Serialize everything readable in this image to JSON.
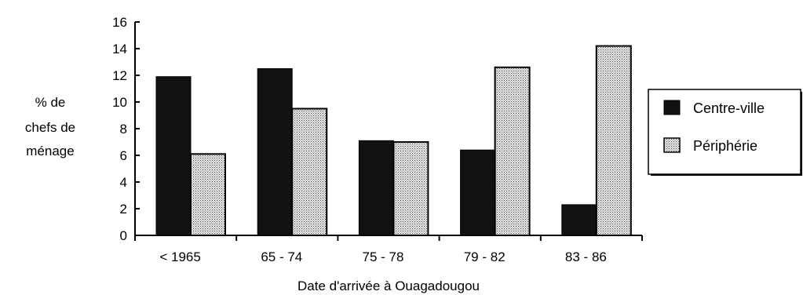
{
  "chart_data": {
    "type": "bar",
    "categories": [
      "< 1965",
      "65 - 74",
      "75 - 78",
      "79 - 82",
      "83 - 86"
    ],
    "series": [
      {
        "name": "Centre-ville",
        "values": [
          11.9,
          12.5,
          7.1,
          6.4,
          2.3
        ],
        "color": "#111111"
      },
      {
        "name": "Périphérie",
        "values": [
          6.1,
          9.5,
          7.0,
          12.6,
          14.2
        ],
        "color": "#c8c8c8"
      }
    ],
    "ylabel_lines": [
      "% de",
      "chefs de",
      "ménage"
    ],
    "xlabel": "Date d'arrivée à Ouagadougou",
    "ylim": [
      0,
      16
    ],
    "yticks": [
      0,
      2,
      4,
      6,
      8,
      10,
      12,
      14,
      16
    ],
    "grid": false,
    "legend_position": "right"
  }
}
